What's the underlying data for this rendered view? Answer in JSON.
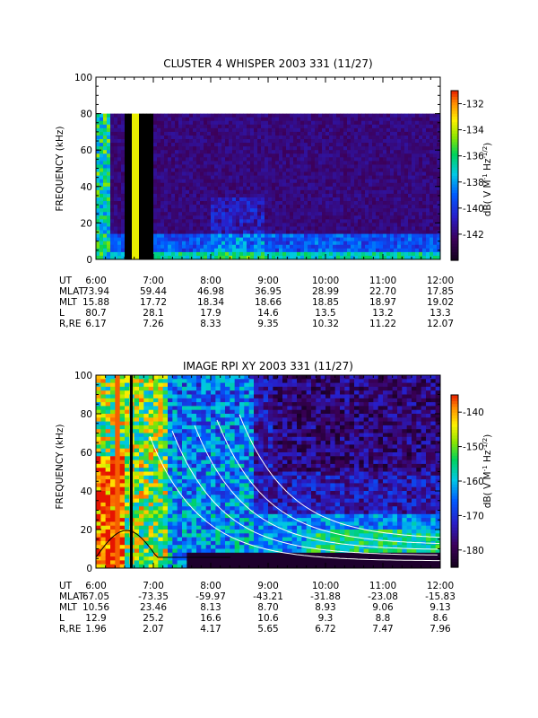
{
  "chart_data": [
    {
      "type": "heatmap",
      "title": "CLUSTER 4 WHISPER 2003 331 (11/27)",
      "xlabel": "",
      "ylabel": "FREQUENCY (kHz)",
      "x_ticks": [
        "6:00",
        "7:00",
        "8:00",
        "9:00",
        "10:00",
        "11:00",
        "12:00"
      ],
      "x_range": [
        "6:00",
        "12:00"
      ],
      "y_ticks": [
        "0",
        "20",
        "40",
        "60",
        "80",
        "100"
      ],
      "ylim": [
        0,
        100
      ],
      "data_ymax": 80,
      "colorbar": {
        "label": "dB( V M",
        "label_sup1": "-1",
        "label_mid": " Hz",
        "label_sup2": "-1/2",
        "label_end": ")",
        "ticks": [
          "-132",
          "-134",
          "-136",
          "-138",
          "-140",
          "-142"
        ],
        "range": [
          -144,
          -131
        ]
      },
      "ephemeris": {
        "rows": [
          {
            "name": "UT",
            "values": [
              "6:00",
              "7:00",
              "8:00",
              "9:00",
              "10:00",
              "11:00",
              "12:00"
            ]
          },
          {
            "name": "MLAT",
            "values": [
              "73.94",
              "59.44",
              "46.98",
              "36.95",
              "28.99",
              "22.70",
              "17.85"
            ]
          },
          {
            "name": "MLT",
            "values": [
              "15.88",
              "17.72",
              "18.34",
              "18.66",
              "18.85",
              "18.97",
              "19.02"
            ]
          },
          {
            "name": "L",
            "values": [
              "80.7",
              "28.1",
              "17.9",
              "14.6",
              "13.5",
              "13.2",
              "13.3"
            ]
          },
          {
            "name": "R,RE",
            "values": [
              "6.17",
              "7.26",
              "8.33",
              "9.35",
              "10.32",
              "11.22",
              "12.07"
            ]
          }
        ]
      }
    },
    {
      "type": "heatmap",
      "title": "IMAGE RPI XY 2003 331 (11/27)",
      "xlabel": "",
      "ylabel": "FREQUENCY (kHz)",
      "x_ticks": [
        "6:00",
        "7:00",
        "8:00",
        "9:00",
        "10:00",
        "11:00",
        "12:00"
      ],
      "x_range": [
        "6:00",
        "12:00"
      ],
      "y_ticks": [
        "0",
        "20",
        "40",
        "60",
        "80",
        "100"
      ],
      "ylim": [
        0,
        100
      ],
      "colorbar": {
        "label": "dB( V M",
        "label_sup1": "-1",
        "label_mid": " Hz",
        "label_sup2": "-1/2",
        "label_end": ")",
        "ticks": [
          "-140",
          "-150",
          "-160",
          "-170",
          "-180"
        ],
        "range": [
          -185,
          -135
        ]
      },
      "ephemeris": {
        "rows": [
          {
            "name": "UT",
            "values": [
              "6:00",
              "7:00",
              "8:00",
              "9:00",
              "10:00",
              "11:00",
              "12:00"
            ]
          },
          {
            "name": "MLAT",
            "values": [
              "67.05",
              "-73.35",
              "-59.97",
              "-43.21",
              "-31.88",
              "-23.08",
              "-15.83"
            ]
          },
          {
            "name": "MLT",
            "values": [
              "10.56",
              "23.46",
              "8.13",
              "8.70",
              "8.93",
              "9.06",
              "9.13"
            ]
          },
          {
            "name": "L",
            "values": [
              "12.9",
              "25.2",
              "16.6",
              "10.6",
              "9.3",
              "8.8",
              "8.6"
            ]
          },
          {
            "name": "R,RE",
            "values": [
              "1.96",
              "2.07",
              "4.17",
              "5.65",
              "6.72",
              "7.47",
              "7.96"
            ]
          }
        ]
      }
    }
  ]
}
